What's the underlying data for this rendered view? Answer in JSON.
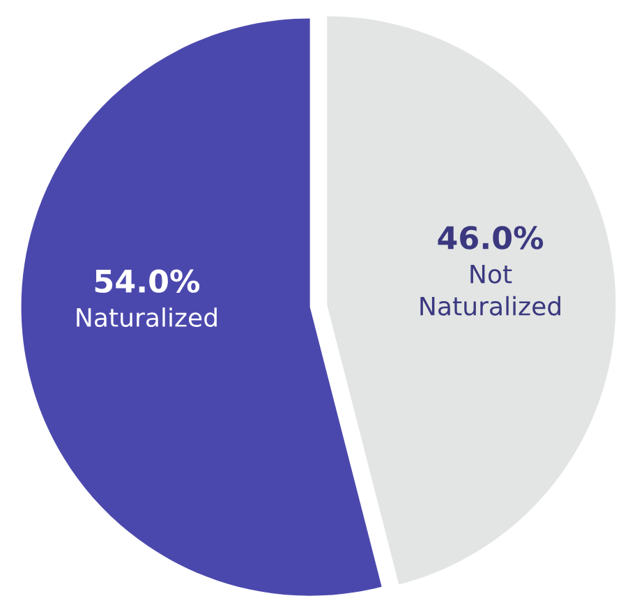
{
  "chart_data": {
    "type": "pie",
    "categories": [
      "Naturalized",
      "Not Naturalized"
    ],
    "values": [
      54.0,
      46.0
    ],
    "value_labels": [
      "54.0%",
      "46.0%"
    ],
    "colors": [
      "#4b48ad",
      "#e2e5e3"
    ]
  }
}
